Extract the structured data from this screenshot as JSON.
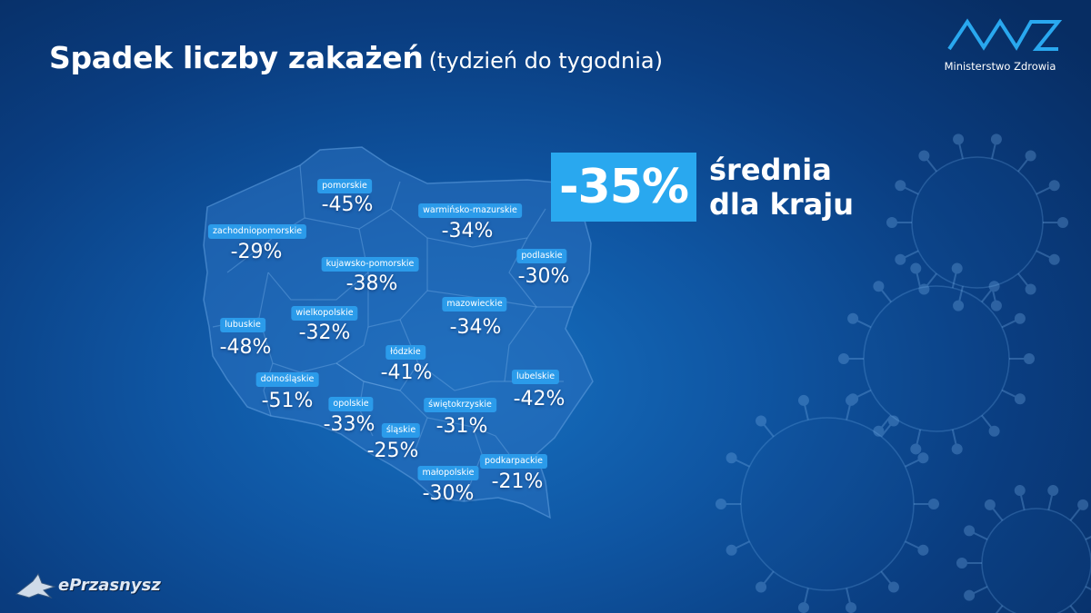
{
  "title": {
    "main": "Spadek liczby zakażeń",
    "sub": "(tydzień do tygodnia)"
  },
  "logo": {
    "text": "Ministerstwo Zdrowia",
    "icon": "mz-logo-icon"
  },
  "average": {
    "value": "-35%",
    "label_line1": "średnia",
    "label_line2": "dla kraju"
  },
  "regions": [
    {
      "id": "pomorskie",
      "name": "pomorskie",
      "value": "-45%"
    },
    {
      "id": "warminsko-mazurskie",
      "name": "warmińsko-mazurskie",
      "value": "-34%"
    },
    {
      "id": "zachodniopomorskie",
      "name": "zachodniopomorskie",
      "value": "-29%"
    },
    {
      "id": "kujawsko-pomorskie",
      "name": "kujawsko-pomorskie",
      "value": "-38%"
    },
    {
      "id": "podlaskie",
      "name": "podlaskie",
      "value": "-30%"
    },
    {
      "id": "wielkopolskie",
      "name": "wielkopolskie",
      "value": "-32%"
    },
    {
      "id": "mazowieckie",
      "name": "mazowieckie",
      "value": "-34%"
    },
    {
      "id": "lubuskie",
      "name": "lubuskie",
      "value": "-48%"
    },
    {
      "id": "lodzkie",
      "name": "łódzkie",
      "value": "-41%"
    },
    {
      "id": "dolnoslaskie",
      "name": "dolnośląskie",
      "value": "-51%"
    },
    {
      "id": "lubelskie",
      "name": "lubelskie",
      "value": "-42%"
    },
    {
      "id": "opolskie",
      "name": "opolskie",
      "value": "-33%"
    },
    {
      "id": "swietokrzyskie",
      "name": "świętokrzyskie",
      "value": "-31%"
    },
    {
      "id": "slaskie",
      "name": "śląskie",
      "value": "-25%"
    },
    {
      "id": "podkarpackie",
      "name": "podkarpackie",
      "value": "-21%"
    },
    {
      "id": "malopolskie",
      "name": "małopolskie",
      "value": "-30%"
    }
  ],
  "watermark": {
    "text": "ePrzasnysz"
  },
  "colors": {
    "accent": "#29a8ef",
    "badge": "#2b9bea",
    "background": "#0a3d80"
  }
}
